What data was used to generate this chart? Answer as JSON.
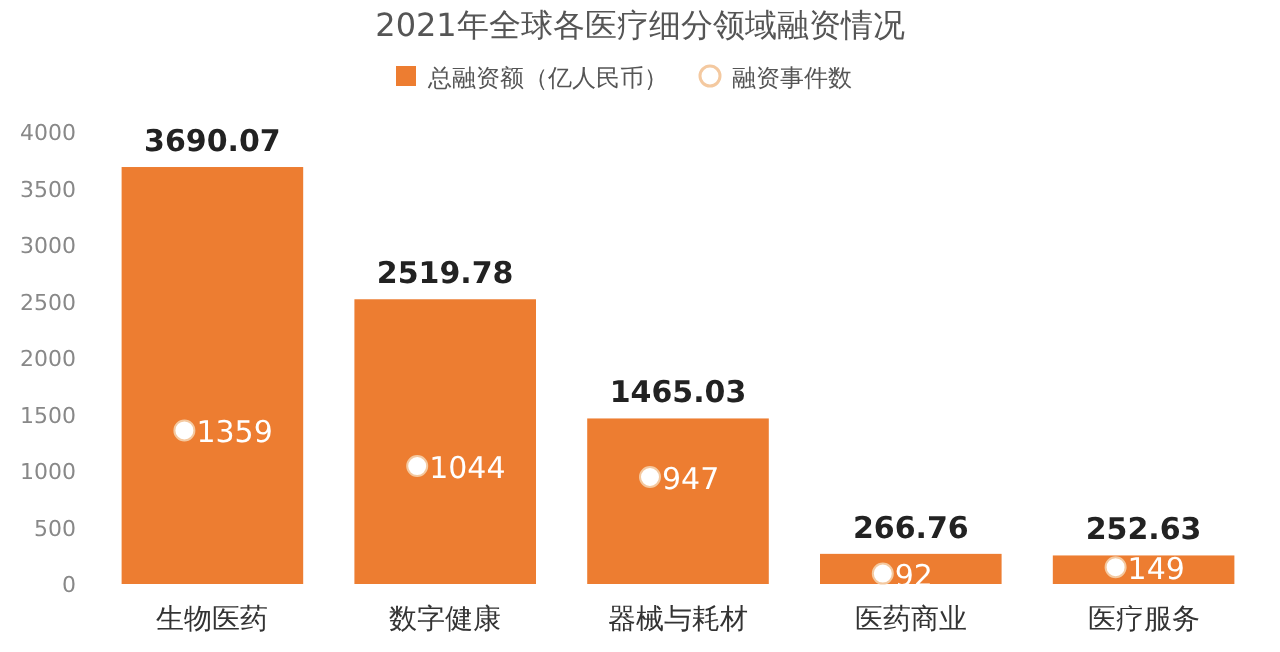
{
  "chart_data": {
    "type": "bar",
    "title": "2021年全球各医疗细分领域融资情况",
    "categories": [
      "生物医药",
      "数字健康",
      "器械与耗材",
      "医药商业",
      "医疗服务"
    ],
    "series": [
      {
        "name": "总融资额（亿人民币）",
        "color": "#ed7d31",
        "values": [
          3690.07,
          2519.78,
          1465.03,
          266.76,
          252.63
        ]
      },
      {
        "name": "融资事件数",
        "type": "scatter",
        "color": "#ffffff",
        "values": [
          1359,
          1044,
          947,
          92,
          149
        ]
      }
    ],
    "ylim": [
      0,
      4000
    ],
    "yticks": [
      0,
      500,
      1000,
      1500,
      2000,
      2500,
      3000,
      3500,
      4000
    ],
    "data_labels": true,
    "legend": "top",
    "grid": false,
    "marker": "circle"
  }
}
